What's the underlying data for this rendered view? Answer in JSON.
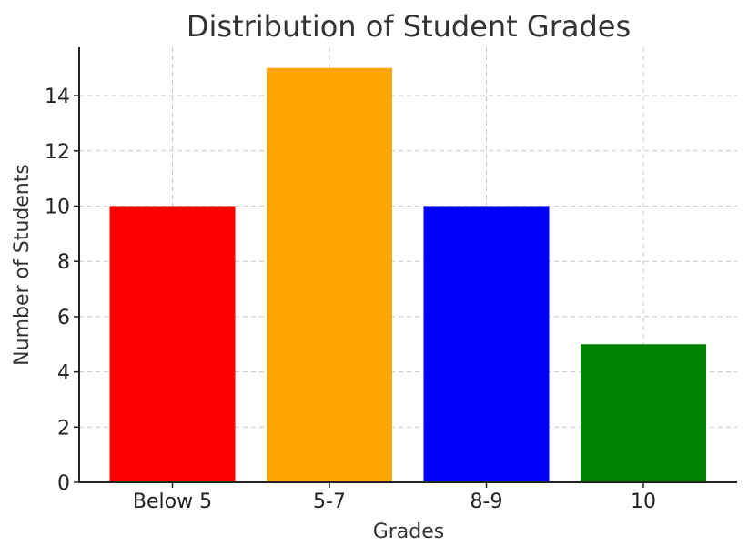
{
  "chart_data": {
    "type": "bar",
    "title": "Distribution of Student Grades",
    "xlabel": "Grades",
    "ylabel": "Number of Students",
    "categories": [
      "Below 5",
      "5-7",
      "8-9",
      "10"
    ],
    "values": [
      10,
      15,
      10,
      5
    ],
    "colors": [
      "#ff0000",
      "#ffa500",
      "#0000ff",
      "#008000"
    ],
    "ylim": [
      0,
      15.75
    ],
    "yticks": [
      0,
      2,
      4,
      6,
      8,
      10,
      12,
      14
    ],
    "grid": true
  }
}
